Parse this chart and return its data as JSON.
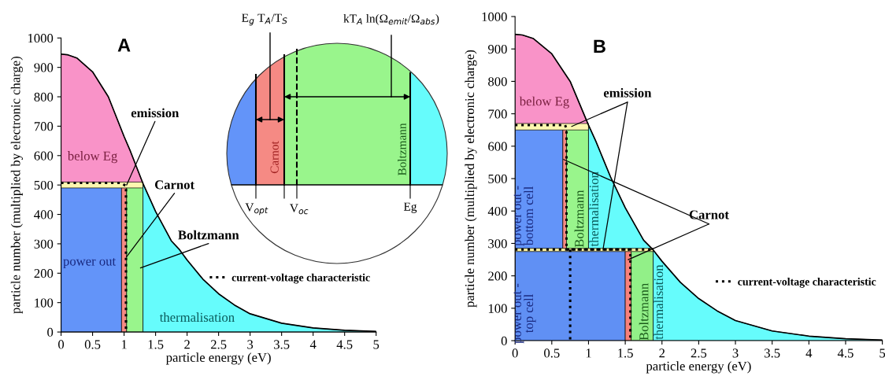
{
  "chart_data": [
    {
      "type": "area",
      "title": "A",
      "xlabel": "particle energy (eV)",
      "ylabel": "particle number (multiplied by electronic charge)",
      "xlim": [
        0,
        5
      ],
      "ylim": [
        0,
        1000
      ],
      "xticks": [
        0,
        0.5,
        1,
        1.5,
        2,
        2.5,
        3,
        3.5,
        4,
        4.5,
        5
      ],
      "yticks": [
        0,
        100,
        200,
        300,
        400,
        500,
        600,
        700,
        800,
        900,
        1000
      ],
      "legend": "right",
      "series": [
        {
          "color": "#f993c8",
          "x": [
            0,
            0.1,
            0.25,
            0.5,
            0.75,
            1.0,
            1.1,
            1.2,
            1.3
          ],
          "values": [
            945,
            943,
            932,
            885,
            800,
            665,
            615,
            560,
            505
          ]
        },
        {
          "color": "#fdf7b0",
          "x": [
            0,
            1.3
          ],
          "values": [
            510,
            510
          ]
        },
        {
          "color": "#6394f9",
          "x": [
            0,
            0.96
          ],
          "values": [
            490,
            490
          ]
        },
        {
          "color": "#f58a84",
          "x": [
            0.96,
            1.04
          ],
          "values": [
            490,
            490
          ]
        },
        {
          "color": "#99f58c",
          "x": [
            1.04,
            1.3
          ],
          "values": [
            490,
            490
          ]
        },
        {
          "color": "#66fcfc",
          "x": [
            1.3,
            1.5,
            1.75,
            1.88,
            2,
            2.25,
            2.5,
            2.75,
            3,
            3.5,
            4,
            4.5,
            5
          ],
          "values": [
            505,
            410,
            310,
            280,
            245,
            180,
            130,
            92,
            62,
            30,
            14,
            6,
            2
          ]
        },
        {
          "type": "line",
          "color": "#000000",
          "line_style": "solid",
          "x": [
            0,
            0.1,
            0.25,
            0.5,
            0.75,
            1.0,
            1.1,
            1.2,
            1.3,
            1.5,
            1.75,
            1.88,
            2,
            2.25,
            2.5,
            2.75,
            3,
            3.5,
            4,
            4.5,
            5
          ],
          "values": [
            945,
            943,
            932,
            885,
            800,
            665,
            615,
            560,
            505,
            410,
            310,
            280,
            245,
            180,
            130,
            92,
            62,
            30,
            14,
            6,
            2
          ]
        },
        {
          "type": "line",
          "name": "current-voltage characteristic",
          "color": "#000000",
          "line_style": "dotted",
          "x": [
            0,
            0.95,
            1.03,
            1.03
          ],
          "values": [
            507,
            507,
            497,
            0
          ]
        }
      ],
      "annotations": [
        "below Eg",
        "power out",
        "thermalisation",
        {
          "text": "emission",
          "x": 1.04,
          "y": 500
        },
        {
          "text": "Carnot",
          "x": 1.04,
          "y": 256
        },
        {
          "text": "Boltzmann",
          "x": 1.26,
          "y": 218
        }
      ]
    },
    {
      "type": "other",
      "annotations": [
        "E$_{g}$ T$_{A}$/T$_{S}$",
        "kT$_{A}$ ln(Ω$_{emit}$/Ω$_{abs}$)",
        "Carnot",
        "Boltzmann",
        "V$_{opt}$",
        "V$_{oc}$",
        "Eg"
      ]
    },
    {
      "type": "area",
      "title": "B",
      "xlabel": "particle energy (eV)",
      "ylabel": "particle number (multiplied by electronic charge)",
      "xlim": [
        0,
        5
      ],
      "ylim": [
        0,
        1000
      ],
      "xticks": [
        0,
        0.5,
        1,
        1.5,
        2,
        2.5,
        3,
        3.5,
        4,
        4.5,
        5
      ],
      "yticks": [
        0,
        100,
        200,
        300,
        400,
        500,
        600,
        700,
        800,
        900,
        1000
      ],
      "legend": "right",
      "series": [
        {
          "color": "#f993c8",
          "x": [
            0,
            0.1,
            0.25,
            0.5,
            0.75,
            1.0
          ],
          "values": [
            945,
            943,
            932,
            885,
            800,
            665
          ]
        },
        {
          "color": "#fdf7b0",
          "x": [
            0,
            1.0
          ],
          "values": [
            670,
            670
          ]
        },
        {
          "color": "#6394f9",
          "x": [
            0,
            0.65
          ],
          "values": [
            650,
            650
          ]
        },
        {
          "color": "#f58a84",
          "x": [
            0.65,
            0.7
          ],
          "values": [
            650,
            650
          ]
        },
        {
          "color": "#99f58c",
          "x": [
            0.7,
            1.0
          ],
          "values": [
            650,
            650
          ]
        },
        {
          "color": "#66fcfc",
          "x": [
            1.0,
            1.1,
            1.2,
            1.3,
            1.5,
            1.75,
            1.88
          ],
          "values": [
            665,
            615,
            560,
            505,
            410,
            310,
            280
          ]
        },
        {
          "color": "#fff3a0",
          "x": [
            0,
            1.88
          ],
          "values": [
            285,
            285
          ]
        },
        {
          "color": "#6090f4",
          "x": [
            0,
            1.5
          ],
          "values": [
            275,
            275
          ]
        },
        {
          "color": "#f7807a",
          "x": [
            1.5,
            1.58
          ],
          "values": [
            275,
            275
          ]
        },
        {
          "color": "#92f088",
          "x": [
            1.58,
            1.88
          ],
          "values": [
            275,
            275
          ]
        },
        {
          "color": "#66fcfc",
          "x": [
            1.88,
            2,
            2.25,
            2.5,
            2.75,
            3,
            3.5,
            4,
            4.5,
            5
          ],
          "values": [
            280,
            245,
            180,
            130,
            92,
            62,
            30,
            14,
            6,
            2
          ]
        },
        {
          "type": "line",
          "color": "#000000",
          "line_style": "solid",
          "x": [
            0,
            0.1,
            0.25,
            0.5,
            0.75,
            1.0,
            1.1,
            1.2,
            1.3,
            1.5,
            1.75,
            1.88,
            2,
            2.25,
            2.5,
            2.75,
            3,
            3.5,
            4,
            4.5,
            5
          ],
          "values": [
            945,
            943,
            932,
            885,
            800,
            665,
            615,
            560,
            505,
            410,
            310,
            280,
            245,
            180,
            130,
            92,
            62,
            30,
            14,
            6,
            2
          ]
        },
        {
          "type": "line",
          "name": "current-voltage characteristic",
          "color": "#000000",
          "line_style": "dotted",
          "x": [
            0,
            0.68,
            0.7,
            0.7,
            1.85
          ],
          "values": [
            665,
            665,
            655,
            281,
            281
          ]
        },
        {
          "type": "line",
          "color": "#000000",
          "line_style": "dotted",
          "x": [
            0,
            1.55,
            1.57,
            1.57
          ],
          "values": [
            281,
            281,
            275,
            0
          ]
        },
        {
          "type": "line",
          "color": "#000000",
          "line_style": "dotted",
          "x": [
            0.75,
            0.75
          ],
          "values": [
            281,
            0
          ]
        }
      ],
      "annotations": [
        "below Eg",
        "power out -\nbottom cell",
        "Boltzmann",
        "thermalisation",
        "power out -\ntop cell",
        "Boltzmann",
        "thermalisation",
        {
          "text": "emission",
          "x": 0.77,
          "y": 661
        },
        {
          "text": "Carnot",
          "x": 0.66,
          "y": 559
        }
      ]
    }
  ]
}
